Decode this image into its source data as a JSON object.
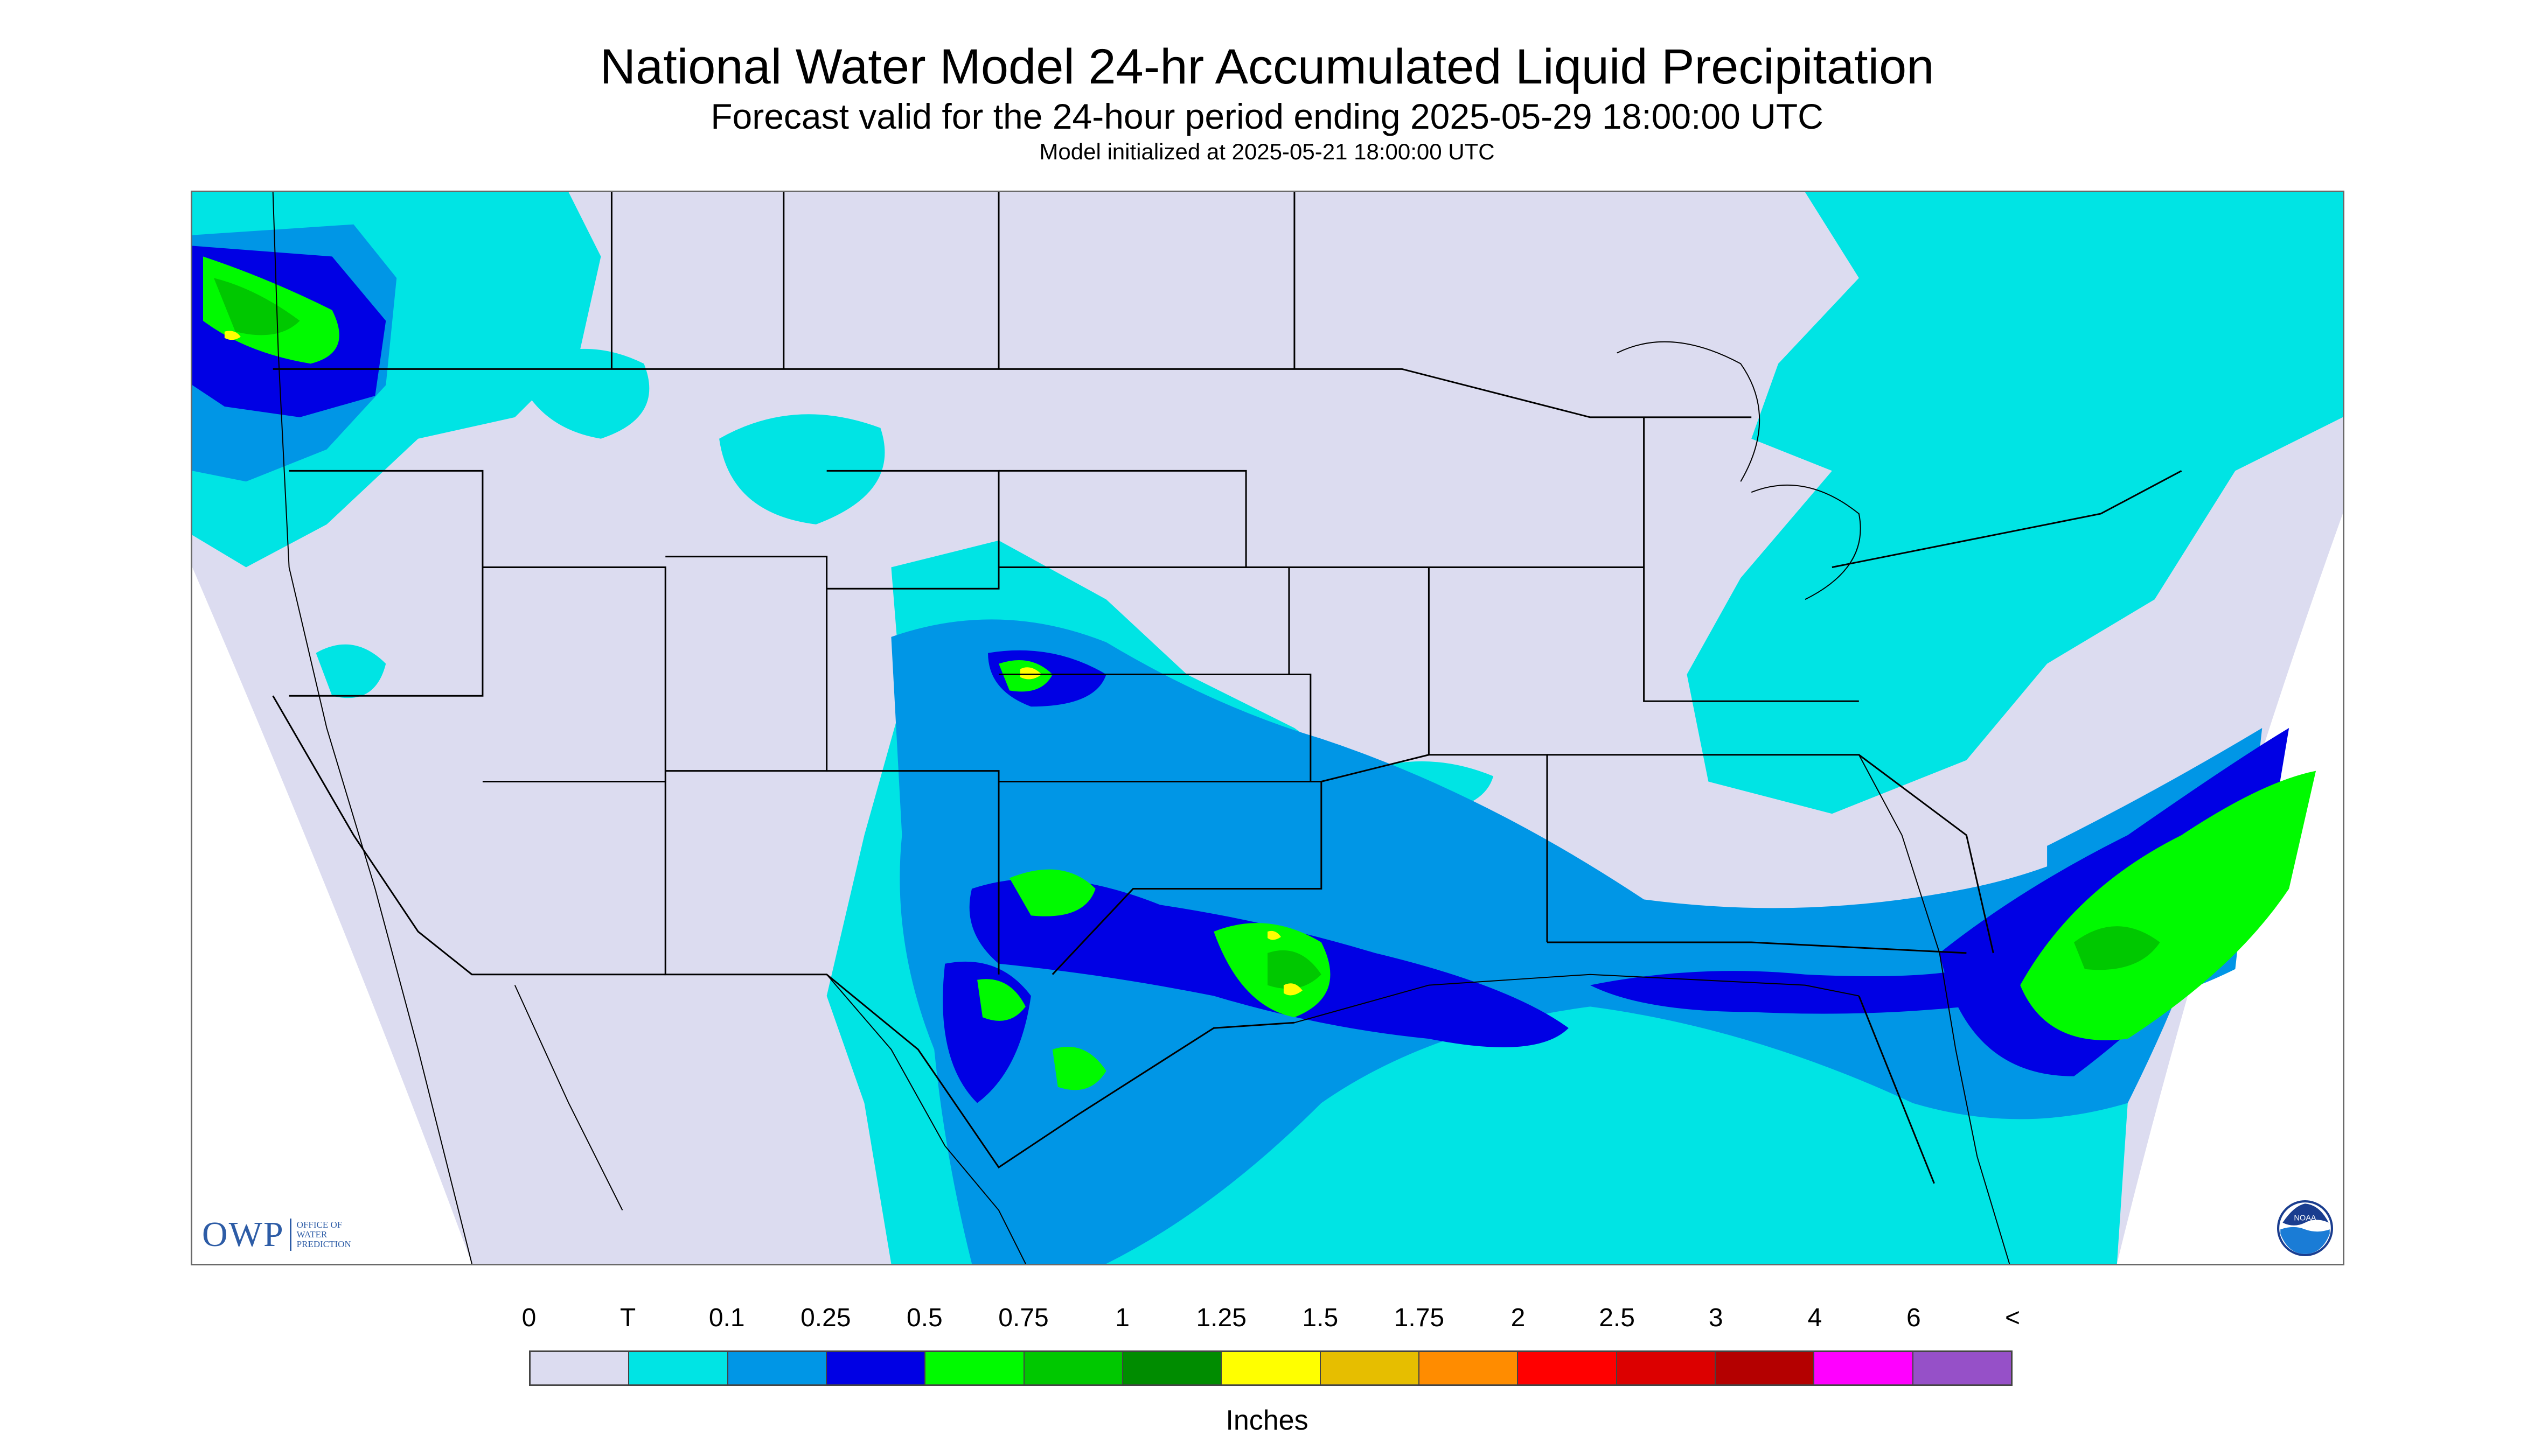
{
  "header": {
    "title": "National Water Model 24-hr Accumulated Liquid Precipitation",
    "subtitle": "Forecast valid for the 24-hour period ending 2025-05-29 18:00:00 UTC",
    "init": "Model initialized at 2025-05-21 18:00:00 UTC"
  },
  "logos": {
    "owp_letters": "OWP",
    "owp_text_1": "Office of",
    "owp_text_2": "Water",
    "owp_text_3": "Prediction",
    "noaa_text": "NOAA"
  },
  "legend": {
    "units": "Inches",
    "tick_labels": [
      "0",
      "T",
      "0.1",
      "0.25",
      "0.5",
      "0.75",
      "1",
      "1.25",
      "1.5",
      "1.75",
      "2",
      "2.5",
      "3",
      "4",
      "6",
      "<"
    ],
    "colors": [
      "#dcdcf0",
      "#00e4e4",
      "#0096e6",
      "#0000e4",
      "#00fa00",
      "#00c800",
      "#008c00",
      "#ffff00",
      "#e6be00",
      "#ff8c00",
      "#ff0000",
      "#dc0000",
      "#b40000",
      "#ff00ff",
      "#9650c8"
    ]
  },
  "map": {
    "background_color": "#dcdcf0",
    "outside_color": "#ffffff",
    "border_color": "#000000"
  }
}
